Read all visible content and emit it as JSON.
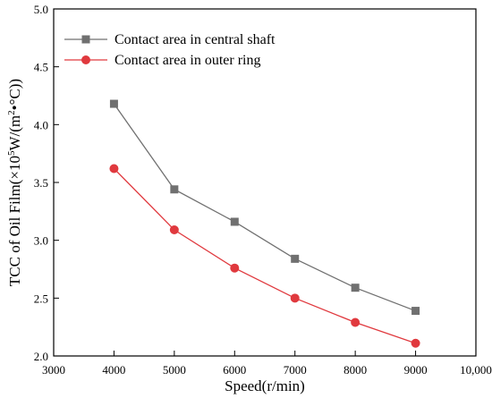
{
  "chart_data": {
    "type": "line",
    "title": "",
    "xlabel": "Speed(r/min)",
    "ylabel": {
      "prefix": "TCC of Oil Film(×10",
      "sup": "5",
      "suffix": "W/(m",
      "sup2": "2",
      "end": "•°C))"
    },
    "xlim": [
      3000,
      10000
    ],
    "ylim": [
      2.0,
      5.0
    ],
    "x_ticks": [
      3000,
      4000,
      5000,
      6000,
      7000,
      8000,
      9000,
      10000
    ],
    "x_tick_labels": [
      "3000",
      "4000",
      "5000",
      "6000",
      "7000",
      "8000",
      "9000",
      "10,000"
    ],
    "y_ticks": [
      2.0,
      2.5,
      3.0,
      3.5,
      4.0,
      4.5,
      5.0
    ],
    "y_tick_labels": [
      "2.0",
      "2.5",
      "3.0",
      "3.5",
      "4.0",
      "4.5",
      "5.0"
    ],
    "grid": false,
    "legend_position": "top-left",
    "x": [
      4000,
      5000,
      6000,
      7000,
      8000,
      9000
    ],
    "series": [
      {
        "name": "Contact area in central shaft",
        "values": [
          4.18,
          3.44,
          3.16,
          2.84,
          2.59,
          2.39
        ],
        "color": "#707070",
        "marker": "square"
      },
      {
        "name": "Contact area in outer ring",
        "values": [
          3.62,
          3.09,
          2.76,
          2.5,
          2.29,
          2.11
        ],
        "color": "#e0393e",
        "marker": "circle"
      }
    ]
  }
}
